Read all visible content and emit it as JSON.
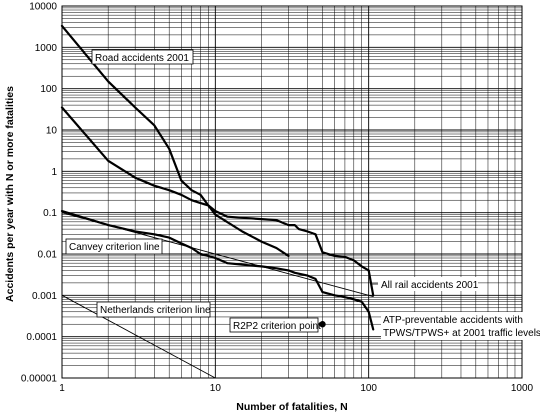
{
  "chart_data": {
    "type": "line",
    "xlabel": "Number of fatalities, N",
    "ylabel": "Accidents per year with N or more fatalities",
    "xscale": "log",
    "yscale": "log",
    "xlim": [
      1,
      1000
    ],
    "ylim": [
      1e-05,
      10000
    ],
    "grid": true,
    "x_ticks": [
      "1",
      "10",
      "100",
      "1000"
    ],
    "y_ticks": [
      "10000",
      "1000",
      "100",
      "10",
      "1",
      "0.1",
      "0.01",
      "0.001",
      "0.0001",
      "0.00001"
    ],
    "series": [
      {
        "name": "Road accidents 2001",
        "style": "thick",
        "x": [
          1,
          2,
          3,
          4,
          5,
          6,
          7,
          8,
          9,
          10,
          15,
          20,
          25,
          30
        ],
        "y": [
          3300,
          150,
          35,
          13,
          3.5,
          0.6,
          0.35,
          0.27,
          0.15,
          0.09,
          0.035,
          0.02,
          0.014,
          0.009
        ]
      },
      {
        "name": "All rail accidents 2001",
        "style": "thick",
        "x": [
          1,
          2,
          3,
          4,
          5,
          6,
          7,
          8,
          9,
          10,
          12,
          15,
          20,
          25,
          30,
          33,
          35,
          40,
          45,
          50,
          60,
          70,
          80,
          90,
          100,
          107
        ],
        "y": [
          35,
          1.8,
          0.7,
          0.45,
          0.35,
          0.27,
          0.2,
          0.17,
          0.15,
          0.11,
          0.08,
          0.075,
          0.07,
          0.066,
          0.05,
          0.05,
          0.04,
          0.035,
          0.03,
          0.011,
          0.009,
          0.0085,
          0.007,
          0.005,
          0.004,
          0.001
        ]
      },
      {
        "name": "ATP-preventable accidents with TPWS/TPWS+ at 2001 traffic levels",
        "style": "thick",
        "x": [
          1,
          2,
          3,
          4,
          5,
          6,
          7,
          8,
          9,
          10,
          12,
          15,
          20,
          25,
          30,
          33,
          40,
          45,
          50,
          60,
          70,
          80,
          90,
          100,
          107
        ],
        "y": [
          0.11,
          0.05,
          0.035,
          0.03,
          0.025,
          0.018,
          0.014,
          0.01,
          0.009,
          0.008,
          0.006,
          0.0055,
          0.005,
          0.0045,
          0.004,
          0.0035,
          0.003,
          0.0025,
          0.0012,
          0.001,
          0.0009,
          0.0008,
          0.0007,
          0.0004,
          0.00015
        ]
      },
      {
        "name": "Canvey criterion line",
        "style": "thin",
        "x": [
          1,
          107
        ],
        "y": [
          0.1,
          0.00093
        ]
      },
      {
        "name": "Netherlands criterion line",
        "style": "thin",
        "x": [
          1,
          10
        ],
        "y": [
          0.001,
          1e-05
        ]
      }
    ],
    "points": [
      {
        "name": "R2P2 criterion point",
        "x": 50,
        "y": 0.0002
      }
    ],
    "annotations": [
      "Road accidents 2001",
      "Canvey criterion line",
      "All rail accidents 2001",
      "Netherlands criterion line",
      "R2P2 criterion point",
      "ATP-preventable accidents with",
      "TPWS/TPWS+ at 2001 traffic levels"
    ]
  }
}
